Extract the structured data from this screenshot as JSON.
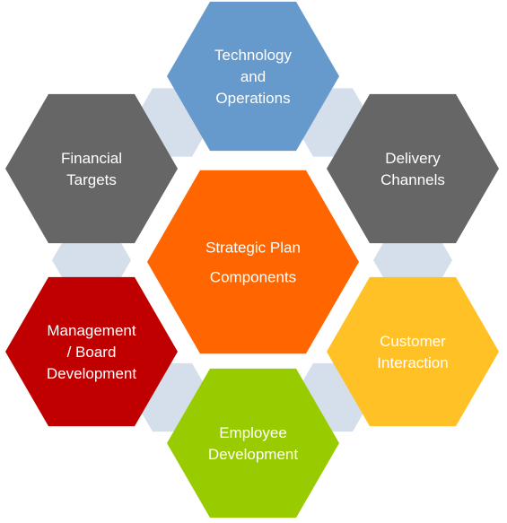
{
  "center": {
    "lines": [
      "Strategic Plan",
      "Components"
    ],
    "color": "#ff6600"
  },
  "nodes": [
    {
      "id": "technology-and-operations",
      "lines": [
        "Technology",
        "and",
        "Operations"
      ],
      "color": "#6699cc"
    },
    {
      "id": "delivery-channels",
      "lines": [
        "Delivery",
        "Channels"
      ],
      "color": "#666666"
    },
    {
      "id": "customer-interaction",
      "lines": [
        "Customer",
        "Interaction"
      ],
      "color": "#ffc125"
    },
    {
      "id": "employee-development",
      "lines": [
        "Employee",
        "Development"
      ],
      "color": "#99cc00"
    },
    {
      "id": "management-board-development",
      "lines": [
        "Management",
        "/ Board",
        "Development"
      ],
      "color": "#c00000"
    },
    {
      "id": "financial-targets",
      "lines": [
        "Financial",
        "Targets"
      ],
      "color": "#666666"
    }
  ],
  "connector_color": "#d5dfeb"
}
